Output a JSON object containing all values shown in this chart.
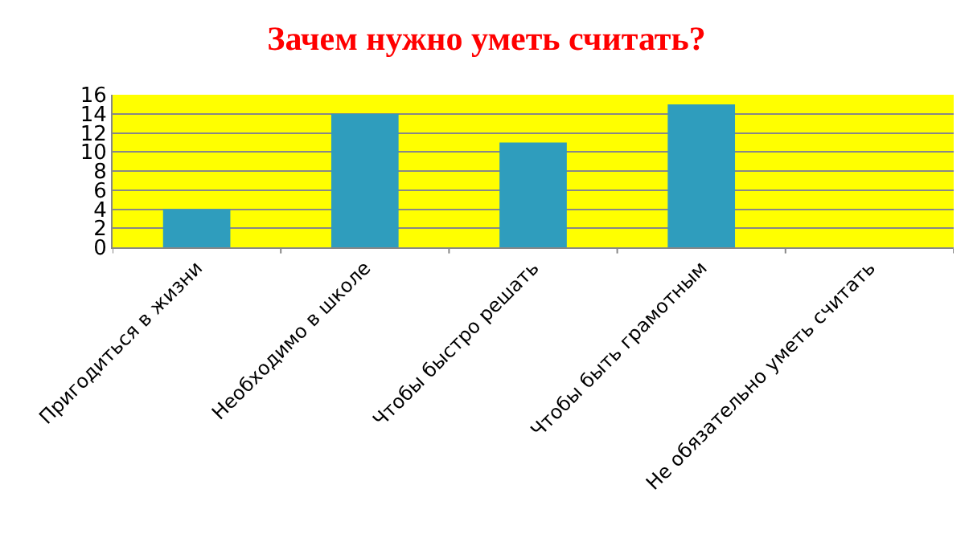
{
  "chart_data": {
    "type": "bar",
    "title": "Зачем нужно уметь считать?",
    "categories": [
      "Пригодиться в жизни",
      "Необходимо в школе",
      "Чтобы быстро решать",
      "Чтобы быть грамотным",
      "Не обязательно уметь считать"
    ],
    "values": [
      4,
      14,
      11,
      15,
      0
    ],
    "color": "#2f9dbd",
    "ylim": [
      0,
      16
    ],
    "yticks": [
      0,
      2,
      4,
      6,
      8,
      10,
      12,
      14,
      16
    ],
    "grid": "y"
  }
}
